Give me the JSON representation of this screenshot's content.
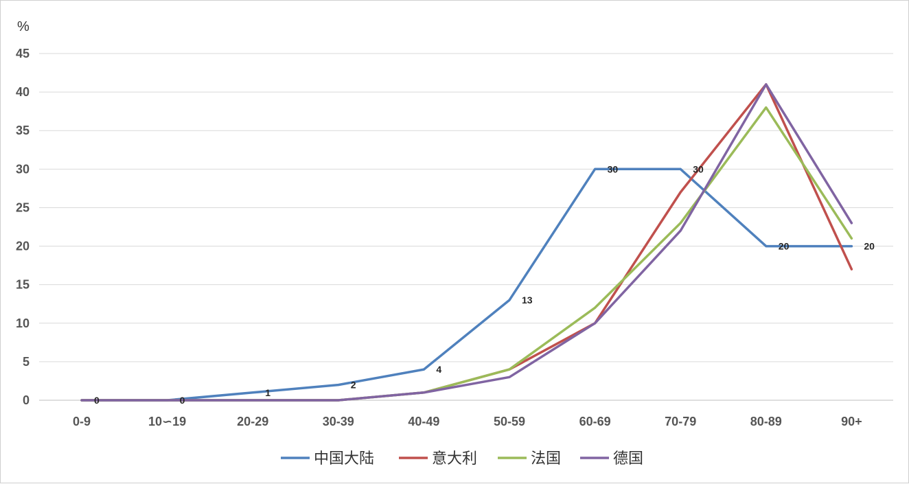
{
  "chart_data": {
    "type": "line",
    "y_unit_label": "%",
    "categories": [
      "0-9",
      "10∽19",
      "20-29",
      "30-39",
      "40-49",
      "50-59",
      "60-69",
      "70-79",
      "80-89",
      "90+"
    ],
    "ylim": [
      0,
      45
    ],
    "yticks": [
      0,
      5,
      10,
      15,
      20,
      25,
      30,
      35,
      40,
      45
    ],
    "grid": true,
    "legend_position": "bottom",
    "series": [
      {
        "name": "中国大陆",
        "color": "#4F81BD",
        "values": [
          0,
          0,
          1,
          2,
          4,
          13,
          30,
          30,
          20,
          20
        ],
        "data_labels": true
      },
      {
        "name": "意大利",
        "color": "#C0504D",
        "values": [
          0,
          0,
          0,
          0,
          1,
          4,
          10,
          27,
          41,
          17
        ],
        "data_labels": false
      },
      {
        "name": "法国",
        "color": "#9BBB59",
        "values": [
          0,
          0,
          0,
          0,
          1,
          4,
          12,
          23,
          38,
          21
        ],
        "data_labels": false
      },
      {
        "name": "德国",
        "color": "#8064A2",
        "values": [
          0,
          0,
          0,
          0,
          1,
          3,
          10,
          22,
          41,
          23
        ],
        "data_labels": false
      }
    ]
  }
}
